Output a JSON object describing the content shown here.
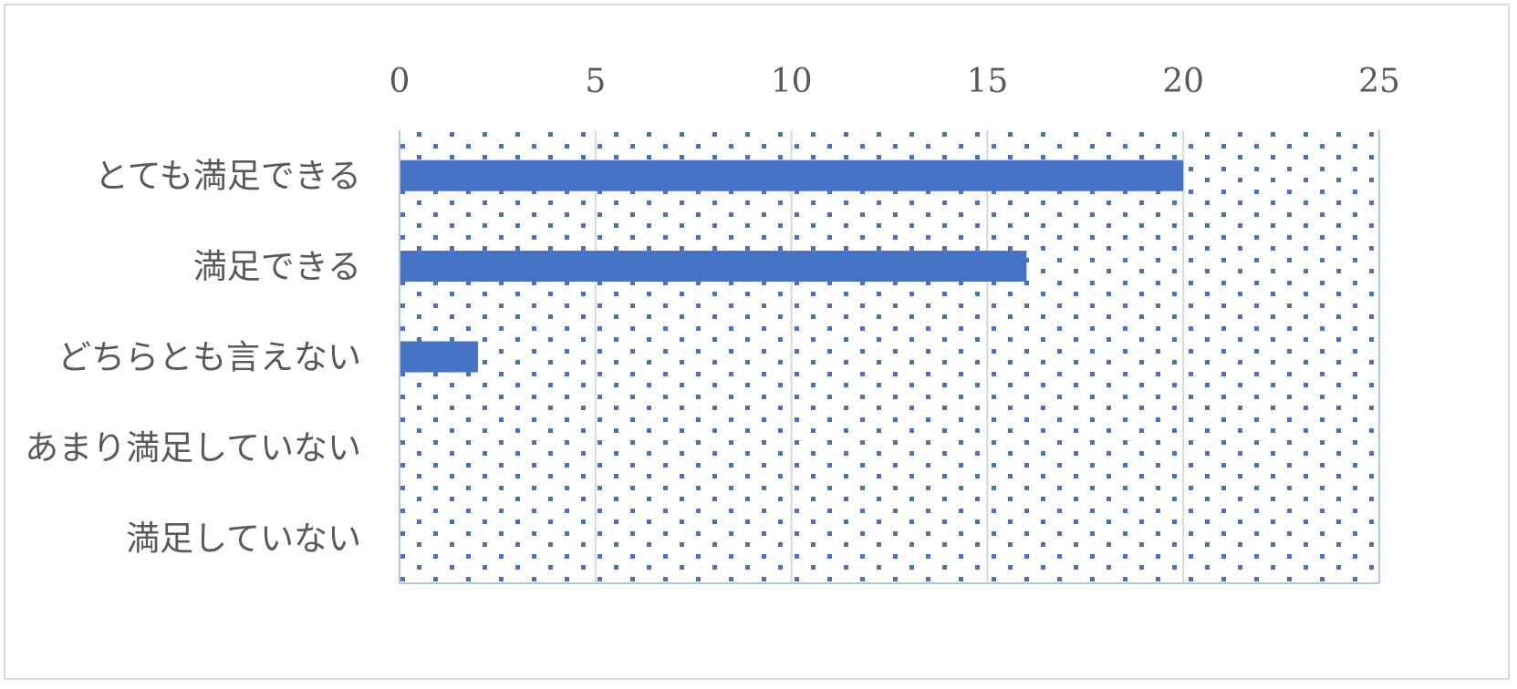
{
  "chart_data": {
    "type": "bar",
    "orientation": "horizontal",
    "title": "",
    "xlabel": "",
    "ylabel": "",
    "categories": [
      "とても満足できる",
      "満足できる",
      "どちらとも言えない",
      "あまり満足していない",
      "満足していない"
    ],
    "values": [
      20,
      16,
      2,
      0,
      0
    ],
    "xlim": [
      0,
      25
    ],
    "x_ticks": [
      0,
      5,
      10,
      15,
      20,
      25
    ],
    "x_axis_position": "top",
    "grid": true,
    "legend": "none",
    "plot_background": "dotted",
    "colors": {
      "bar": "#4472c4",
      "gridline": "#d9d9d9",
      "dots": "#4472c4",
      "plot_border": "#b4c7e7",
      "text": "#595959",
      "frame": "#d9d9d9"
    }
  }
}
